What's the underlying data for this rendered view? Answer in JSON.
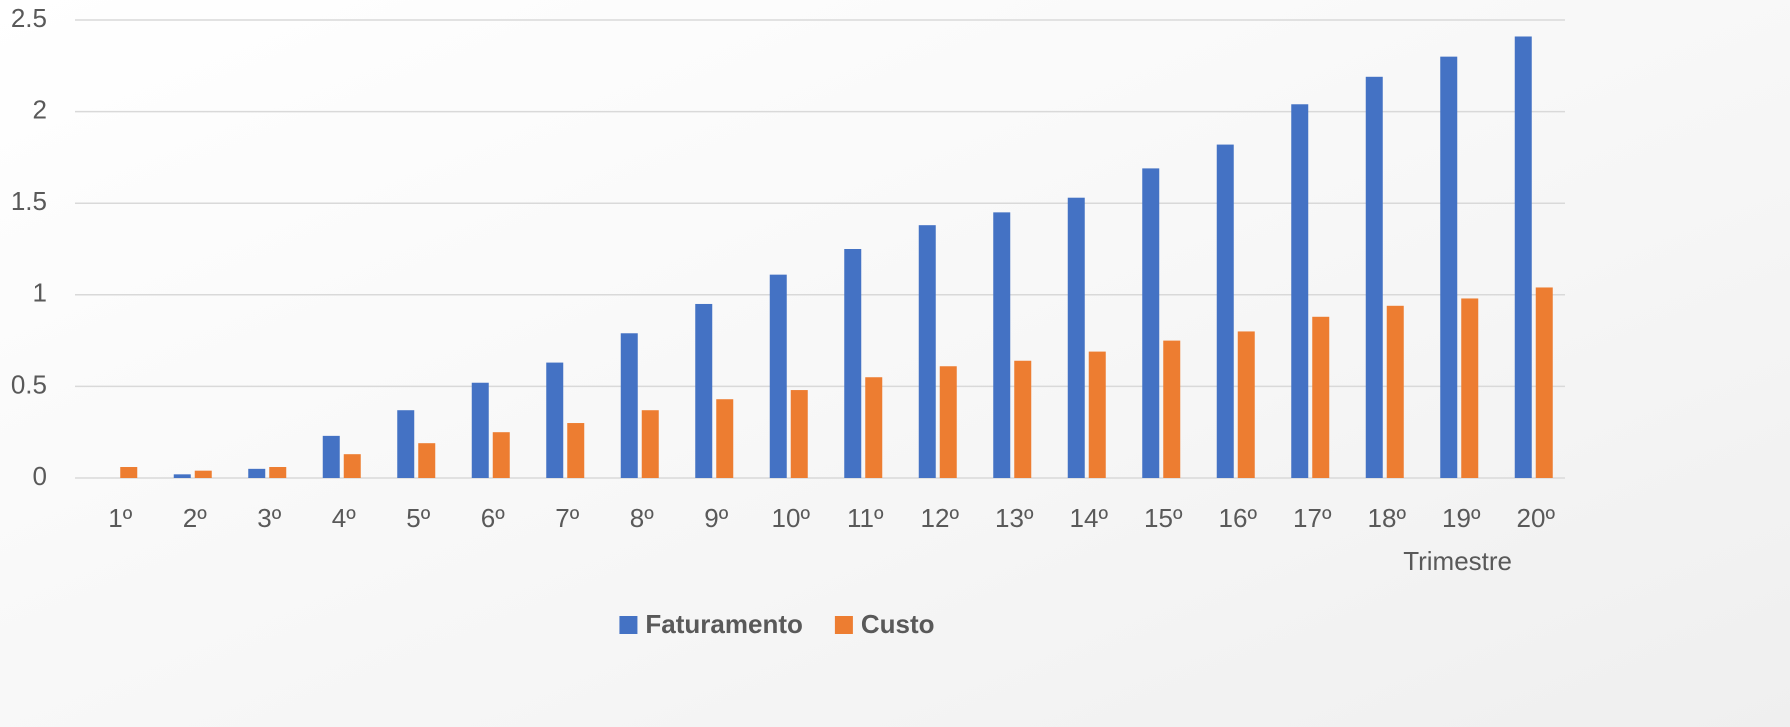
{
  "chart_data": {
    "type": "bar",
    "x_label": "Trimestre",
    "categories": [
      "1º",
      "2º",
      "3º",
      "4º",
      "5º",
      "6º",
      "7º",
      "8º",
      "9º",
      "10º",
      "11º",
      "12º",
      "13º",
      "14º",
      "15º",
      "16º",
      "17º",
      "18º",
      "19º",
      "20º"
    ],
    "series": [
      {
        "name": "Faturamento",
        "color": "#4472c4",
        "values": [
          0,
          0.02,
          0.05,
          0.23,
          0.37,
          0.52,
          0.63,
          0.79,
          0.95,
          1.11,
          1.25,
          1.38,
          1.45,
          1.53,
          1.69,
          1.82,
          2.04,
          2.19,
          2.3,
          2.41
        ]
      },
      {
        "name": "Custo",
        "color": "#ed7d31",
        "values": [
          0.06,
          0.04,
          0.06,
          0.13,
          0.19,
          0.25,
          0.3,
          0.37,
          0.43,
          0.48,
          0.55,
          0.61,
          0.64,
          0.69,
          0.75,
          0.8,
          0.88,
          0.94,
          0.98,
          1.04
        ]
      }
    ],
    "ylim": [
      0,
      2.5
    ],
    "yticks": [
      0,
      0.5,
      1,
      1.5,
      2,
      2.5
    ],
    "grid": true,
    "legend": "bottom"
  }
}
